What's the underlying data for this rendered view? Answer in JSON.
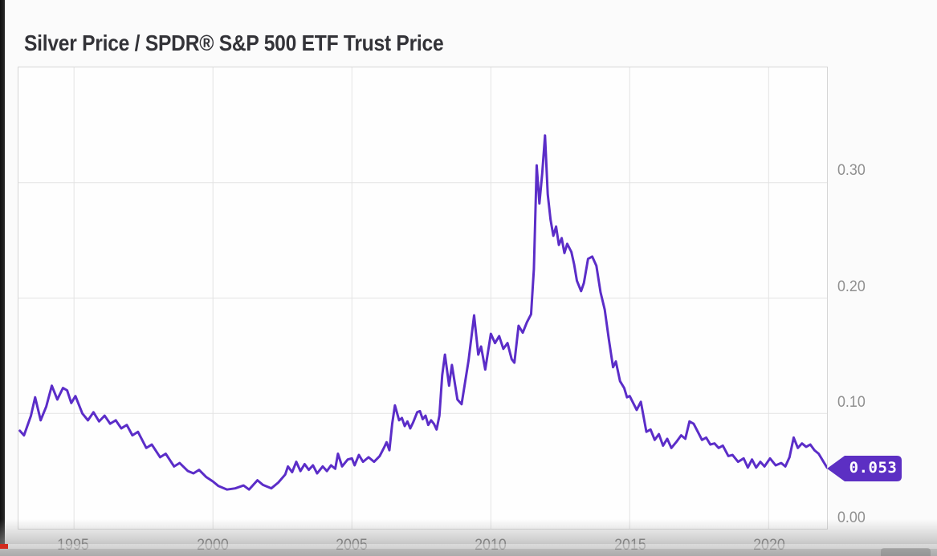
{
  "chart": {
    "title": "Silver Price / SPDR® S&P 500 ETF Trust Price"
  },
  "chart_data": {
    "type": "line",
    "title": "Silver Price / SPDR® S&P 500 ETF Trust Price",
    "xlabel": "",
    "ylabel": "",
    "xlim": [
      1993.0,
      2022.1
    ],
    "ylim": [
      0,
      0.4
    ],
    "grid": true,
    "legend": false,
    "x_ticks": [
      1995,
      2000,
      2005,
      2010,
      2015,
      2020
    ],
    "x_tick_labels": [
      "1995",
      "2000",
      "2005",
      "2010",
      "2015",
      "2020"
    ],
    "y_ticks": [
      0.0,
      0.1,
      0.2,
      0.3
    ],
    "y_tick_labels": [
      "0.00",
      "0.10",
      "0.20",
      "0.30"
    ],
    "line_color": "#5b2dc8",
    "badge_color": "#5c2fc3",
    "grid_color": "#e3e3e3",
    "axis_text_color": "#8f8f8f",
    "last_value_label": "0.053",
    "last_value": 0.053,
    "series": [
      {
        "name": "Silver Price / SPDR® S&P 500 ETF Trust Price",
        "points": [
          [
            1993.05,
            0.085
          ],
          [
            1993.2,
            0.081
          ],
          [
            1993.45,
            0.098
          ],
          [
            1993.6,
            0.114
          ],
          [
            1993.8,
            0.094
          ],
          [
            1994.0,
            0.106
          ],
          [
            1994.2,
            0.124
          ],
          [
            1994.4,
            0.112
          ],
          [
            1994.6,
            0.122
          ],
          [
            1994.75,
            0.12
          ],
          [
            1994.9,
            0.109
          ],
          [
            1995.05,
            0.115
          ],
          [
            1995.3,
            0.1
          ],
          [
            1995.5,
            0.094
          ],
          [
            1995.7,
            0.101
          ],
          [
            1995.9,
            0.093
          ],
          [
            1996.1,
            0.098
          ],
          [
            1996.3,
            0.091
          ],
          [
            1996.5,
            0.094
          ],
          [
            1996.7,
            0.087
          ],
          [
            1996.9,
            0.09
          ],
          [
            1997.1,
            0.081
          ],
          [
            1997.3,
            0.084
          ],
          [
            1997.6,
            0.07
          ],
          [
            1997.8,
            0.073
          ],
          [
            1998.1,
            0.062
          ],
          [
            1998.3,
            0.065
          ],
          [
            1998.6,
            0.054
          ],
          [
            1998.8,
            0.057
          ],
          [
            1999.1,
            0.05
          ],
          [
            1999.3,
            0.048
          ],
          [
            1999.5,
            0.051
          ],
          [
            1999.75,
            0.045
          ],
          [
            2000.0,
            0.041
          ],
          [
            2000.2,
            0.037
          ],
          [
            2000.5,
            0.034
          ],
          [
            2000.8,
            0.035
          ],
          [
            2001.1,
            0.0375
          ],
          [
            2001.3,
            0.034
          ],
          [
            2001.6,
            0.042
          ],
          [
            2001.8,
            0.038
          ],
          [
            2002.1,
            0.035
          ],
          [
            2002.35,
            0.04
          ],
          [
            2002.6,
            0.047
          ],
          [
            2002.7,
            0.054
          ],
          [
            2002.85,
            0.049
          ],
          [
            2003.0,
            0.058
          ],
          [
            2003.15,
            0.05
          ],
          [
            2003.3,
            0.056
          ],
          [
            2003.45,
            0.051
          ],
          [
            2003.6,
            0.055
          ],
          [
            2003.75,
            0.048
          ],
          [
            2003.95,
            0.054
          ],
          [
            2004.1,
            0.05
          ],
          [
            2004.25,
            0.055
          ],
          [
            2004.4,
            0.052
          ],
          [
            2004.5,
            0.065
          ],
          [
            2004.65,
            0.054
          ],
          [
            2004.85,
            0.06
          ],
          [
            2005.0,
            0.061
          ],
          [
            2005.1,
            0.055
          ],
          [
            2005.25,
            0.064
          ],
          [
            2005.4,
            0.058
          ],
          [
            2005.6,
            0.062
          ],
          [
            2005.8,
            0.058
          ],
          [
            2006.0,
            0.063
          ],
          [
            2006.15,
            0.07
          ],
          [
            2006.25,
            0.075
          ],
          [
            2006.35,
            0.068
          ],
          [
            2006.45,
            0.091
          ],
          [
            2006.55,
            0.107
          ],
          [
            2006.7,
            0.094
          ],
          [
            2006.8,
            0.096
          ],
          [
            2006.9,
            0.089
          ],
          [
            2007.0,
            0.093
          ],
          [
            2007.1,
            0.087
          ],
          [
            2007.2,
            0.092
          ],
          [
            2007.35,
            0.101
          ],
          [
            2007.45,
            0.102
          ],
          [
            2007.55,
            0.095
          ],
          [
            2007.65,
            0.098
          ],
          [
            2007.75,
            0.09
          ],
          [
            2007.85,
            0.094
          ],
          [
            2007.95,
            0.091
          ],
          [
            2008.05,
            0.086
          ],
          [
            2008.15,
            0.098
          ],
          [
            2008.25,
            0.133
          ],
          [
            2008.35,
            0.151
          ],
          [
            2008.5,
            0.124
          ],
          [
            2008.6,
            0.142
          ],
          [
            2008.8,
            0.112
          ],
          [
            2008.95,
            0.108
          ],
          [
            2009.2,
            0.146
          ],
          [
            2009.4,
            0.185
          ],
          [
            2009.55,
            0.151
          ],
          [
            2009.65,
            0.158
          ],
          [
            2009.8,
            0.138
          ],
          [
            2010.0,
            0.169
          ],
          [
            2010.15,
            0.161
          ],
          [
            2010.3,
            0.167
          ],
          [
            2010.45,
            0.156
          ],
          [
            2010.6,
            0.161
          ],
          [
            2010.75,
            0.147
          ],
          [
            2010.85,
            0.144
          ],
          [
            2011.0,
            0.176
          ],
          [
            2011.15,
            0.17
          ],
          [
            2011.3,
            0.179
          ],
          [
            2011.45,
            0.186
          ],
          [
            2011.55,
            0.225
          ],
          [
            2011.65,
            0.315
          ],
          [
            2011.75,
            0.282
          ],
          [
            2011.85,
            0.308
          ],
          [
            2011.95,
            0.341
          ],
          [
            2012.05,
            0.29
          ],
          [
            2012.15,
            0.268
          ],
          [
            2012.25,
            0.254
          ],
          [
            2012.35,
            0.262
          ],
          [
            2012.45,
            0.246
          ],
          [
            2012.55,
            0.252
          ],
          [
            2012.65,
            0.239
          ],
          [
            2012.75,
            0.247
          ],
          [
            2012.9,
            0.24
          ],
          [
            2013.0,
            0.229
          ],
          [
            2013.1,
            0.215
          ],
          [
            2013.25,
            0.206
          ],
          [
            2013.35,
            0.213
          ],
          [
            2013.5,
            0.234
          ],
          [
            2013.65,
            0.236
          ],
          [
            2013.8,
            0.228
          ],
          [
            2013.95,
            0.205
          ],
          [
            2014.1,
            0.19
          ],
          [
            2014.25,
            0.164
          ],
          [
            2014.4,
            0.14
          ],
          [
            2014.5,
            0.145
          ],
          [
            2014.65,
            0.128
          ],
          [
            2014.8,
            0.122
          ],
          [
            2014.9,
            0.114
          ],
          [
            2015.0,
            0.115
          ],
          [
            2015.25,
            0.103
          ],
          [
            2015.4,
            0.11
          ],
          [
            2015.6,
            0.084
          ],
          [
            2015.75,
            0.086
          ],
          [
            2015.9,
            0.077
          ],
          [
            2016.05,
            0.082
          ],
          [
            2016.2,
            0.072
          ],
          [
            2016.35,
            0.078
          ],
          [
            2016.5,
            0.07
          ],
          [
            2016.7,
            0.076
          ],
          [
            2016.85,
            0.081
          ],
          [
            2017.0,
            0.078
          ],
          [
            2017.15,
            0.093
          ],
          [
            2017.3,
            0.091
          ],
          [
            2017.45,
            0.084
          ],
          [
            2017.6,
            0.077
          ],
          [
            2017.75,
            0.079
          ],
          [
            2017.9,
            0.073
          ],
          [
            2018.05,
            0.074
          ],
          [
            2018.2,
            0.07
          ],
          [
            2018.35,
            0.072
          ],
          [
            2018.55,
            0.063
          ],
          [
            2018.7,
            0.064
          ],
          [
            2018.9,
            0.058
          ],
          [
            2019.1,
            0.061
          ],
          [
            2019.25,
            0.053
          ],
          [
            2019.4,
            0.06
          ],
          [
            2019.55,
            0.053
          ],
          [
            2019.7,
            0.058
          ],
          [
            2019.85,
            0.054
          ],
          [
            2020.05,
            0.061
          ],
          [
            2020.25,
            0.055
          ],
          [
            2020.45,
            0.057
          ],
          [
            2020.6,
            0.054
          ],
          [
            2020.75,
            0.062
          ],
          [
            2020.9,
            0.079
          ],
          [
            2021.05,
            0.07
          ],
          [
            2021.2,
            0.074
          ],
          [
            2021.35,
            0.071
          ],
          [
            2021.5,
            0.073
          ],
          [
            2021.65,
            0.068
          ],
          [
            2021.8,
            0.065
          ],
          [
            2021.95,
            0.059
          ],
          [
            2022.1,
            0.053
          ]
        ]
      }
    ]
  },
  "player": {
    "progress_color": "#d22a1e"
  }
}
